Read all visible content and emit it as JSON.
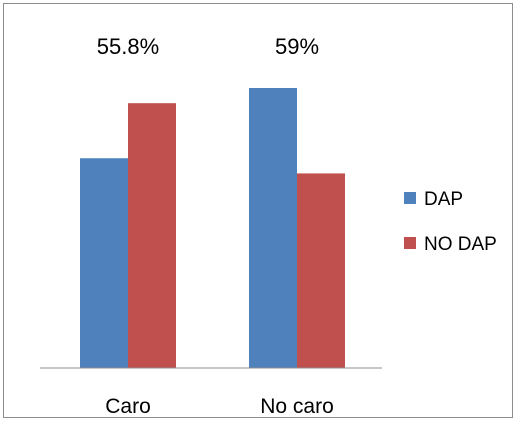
{
  "chart_data": {
    "type": "bar",
    "title": "",
    "xlabel": "",
    "ylabel": "",
    "categories": [
      "Caro",
      "No caro"
    ],
    "series": [
      {
        "name": "DAP",
        "color": "#4f81bd",
        "values": [
          44.2,
          59
        ]
      },
      {
        "name": "NO DAP",
        "color": "#c0504d",
        "values": [
          55.8,
          41
        ]
      }
    ],
    "data_labels": [
      {
        "category": "Caro",
        "text": "55.8%"
      },
      {
        "category": "No caro",
        "text": "59%"
      }
    ],
    "ylim": [
      0,
      59
    ],
    "grid": false,
    "legend_position": "right"
  }
}
